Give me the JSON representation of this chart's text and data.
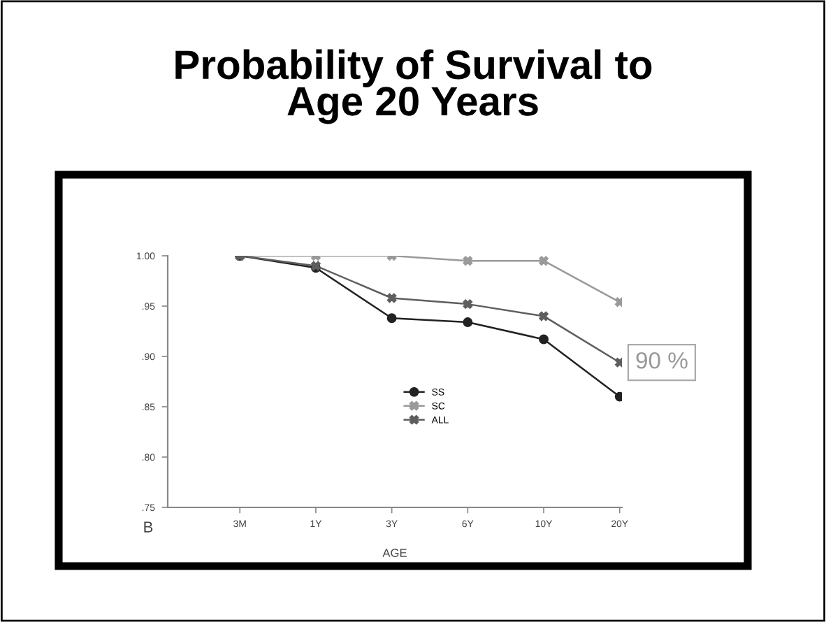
{
  "chart_data": {
    "type": "line",
    "title": "Probability of Survival to\nAge 20 Years",
    "xlabel": "AGE",
    "categories": [
      "3M",
      "1Y",
      "3Y",
      "6Y",
      "10Y",
      "20Y"
    ],
    "series": [
      {
        "name": "SS",
        "color": "#222222",
        "marker": "circle",
        "values": [
          1.0,
          0.988,
          0.938,
          0.934,
          0.917,
          0.86
        ]
      },
      {
        "name": "SC",
        "color": "#9a9a9a",
        "marker": "cross",
        "values": [
          1.0,
          1.0,
          1.0,
          0.995,
          0.995,
          0.954
        ]
      },
      {
        "name": "ALL",
        "color": "#5e5e5e",
        "marker": "cross",
        "values": [
          1.0,
          0.99,
          0.958,
          0.952,
          0.94,
          0.894
        ]
      }
    ],
    "ylim": [
      0.75,
      1.0
    ],
    "yticks": [
      {
        "value": 0.75,
        "label": ".75"
      },
      {
        "value": 0.8,
        "label": ".80"
      },
      {
        "value": 0.85,
        "label": ".85"
      },
      {
        "value": 0.9,
        "label": ".90"
      },
      {
        "value": 0.95,
        "label": ".95"
      },
      {
        "value": 1.0,
        "label": "1.00"
      }
    ],
    "annotations": [
      {
        "text": "90 %",
        "x": "20Y",
        "y": 0.894
      },
      "B"
    ],
    "legend": "center",
    "grid": false,
    "line_style": "solid"
  }
}
